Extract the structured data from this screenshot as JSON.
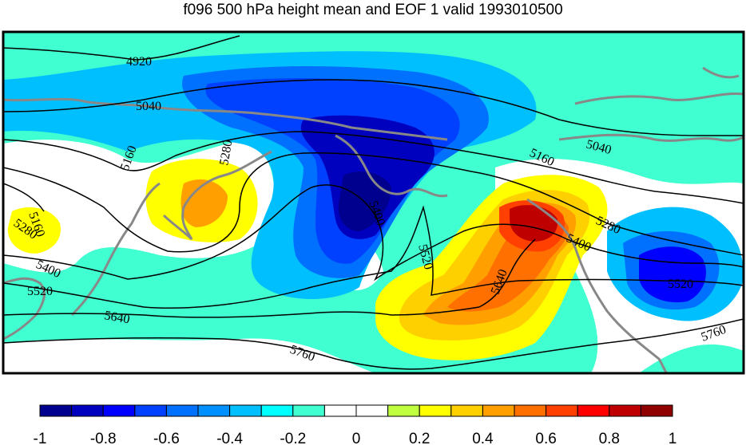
{
  "title": "f096 500 hPa height mean and EOF 1 valid 1993010500",
  "colorbar": {
    "tick_labels": [
      "-1",
      "-0.8",
      "-0.6",
      "-0.4",
      "-0.2",
      "0",
      "0.2",
      "0.4",
      "0.6",
      "0.8",
      "1"
    ],
    "colors": [
      "#00008f",
      "#0000bf",
      "#0000ff",
      "#0040ff",
      "#0070ff",
      "#0090ff",
      "#00bfff",
      "#00ffff",
      "#40ffd0",
      "#ffffff",
      "#ffffff",
      "#c0ff40",
      "#ffff00",
      "#ffd000",
      "#ffa000",
      "#ff7000",
      "#ff4000",
      "#ff0000",
      "#bf0000",
      "#8f0000"
    ]
  },
  "contour_labels": [
    "4920",
    "5040",
    "5040",
    "5160",
    "5160",
    "5160",
    "5280",
    "5280",
    "5280",
    "5400",
    "5400",
    "5400",
    "5520",
    "5520",
    "5520",
    "5640",
    "5640",
    "5760",
    "5760"
  ],
  "chart_data": {
    "type": "heatmap",
    "title": "f096 500 hPa height mean and EOF 1 valid 1993010500",
    "colorbar_range": [
      -1,
      1
    ],
    "colorbar_step": 0.1,
    "contour_levels": [
      4920,
      5040,
      5160,
      5280,
      5400,
      5520,
      5640,
      5760
    ],
    "features": [
      {
        "kind": "min",
        "value_range": [
          -1.0,
          -0.8
        ],
        "location": "north-central (Alaska/Bering)"
      },
      {
        "kind": "max",
        "value_range": [
          0.8,
          0.9
        ],
        "location": "central-east (Gulf of Alaska)"
      },
      {
        "kind": "min",
        "value_range": [
          -0.9,
          -0.8
        ],
        "location": "east (western US coast)"
      },
      {
        "kind": "max",
        "value_range": [
          0.4,
          0.5
        ],
        "location": "west-central (Siberia)"
      }
    ]
  }
}
